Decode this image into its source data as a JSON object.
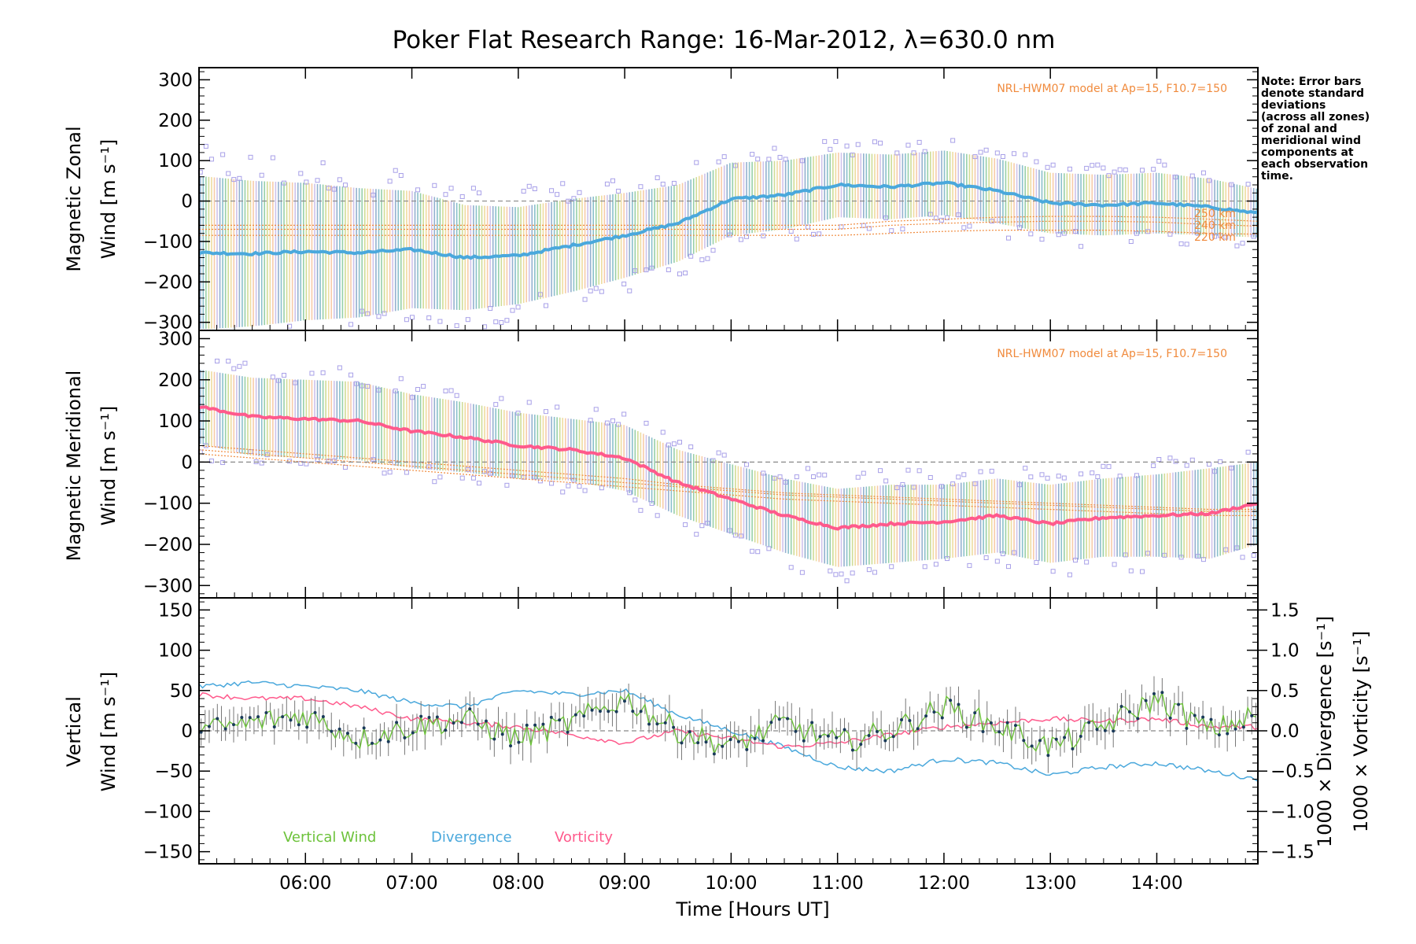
{
  "chart_data": {
    "title": "Poker Flat Research Range: 16-Mar-2012, λ=630.0 nm",
    "xlabel": "Time [Hours UT]",
    "x_ticks": [
      "06:00",
      "07:00",
      "08:00",
      "09:00",
      "10:00",
      "11:00",
      "12:00",
      "13:00",
      "14:00"
    ],
    "x_ticks_hours": [
      6,
      7,
      8,
      9,
      10,
      11,
      12,
      13,
      14
    ],
    "xlim_hours": [
      5.0,
      14.95
    ],
    "note": [
      "Note: Error bars",
      "denote standard",
      "deviations",
      "(across all zones)",
      "of zonal and",
      "meridional wind",
      "components at",
      "each observation",
      "time."
    ],
    "model_label": "NRL-HWM07 model at Ap=15, F10.7=150",
    "model_alt_labels": [
      "250 km",
      "240 km",
      "220 km"
    ],
    "colors": {
      "zonal_mean": "#4aa8dc",
      "meridional_mean": "#ff5a8c",
      "vertical": "#6cc23a",
      "divergence": "#4aa8dc",
      "vorticity": "#ff5a8c",
      "model": "#f08a3c",
      "scatter": "#a8a0e8",
      "errorbar": "#2a4e7a"
    },
    "panels": [
      {
        "id": "zonal",
        "type": "line",
        "ylabel": [
          "Magnetic Zonal",
          "Wind [m s⁻¹]"
        ],
        "ylim": [
          -320,
          330
        ],
        "y_ticks": [
          300,
          200,
          100,
          0,
          -100,
          -200,
          -300
        ],
        "model_label": "NRL-HWM07 model at Ap=15, F10.7=150",
        "series": {
          "x": [
            5.0,
            5.5,
            6.0,
            6.5,
            7.0,
            7.5,
            8.0,
            8.5,
            9.0,
            9.5,
            10.0,
            10.5,
            11.0,
            11.5,
            12.0,
            12.5,
            13.0,
            13.5,
            14.0,
            14.5,
            14.95
          ],
          "mean": [
            -128,
            -130,
            -125,
            -128,
            -120,
            -140,
            -135,
            -110,
            -85,
            -55,
            5,
            15,
            40,
            35,
            45,
            25,
            -5,
            -10,
            -5,
            -15,
            -30
          ],
          "spread": [
            190,
            180,
            170,
            160,
            145,
            130,
            120,
            115,
            105,
            95,
            90,
            85,
            80,
            80,
            80,
            80,
            75,
            75,
            75,
            70,
            60
          ],
          "model_250km": [
            -60,
            -60,
            -60,
            -60,
            -60,
            -60,
            -60,
            -60,
            -60,
            -60,
            -60,
            -60,
            -60,
            -50,
            -45,
            -40,
            -38,
            -38,
            -40,
            -45,
            -50
          ],
          "model_240km": [
            -70,
            -70,
            -70,
            -70,
            -70,
            -70,
            -70,
            -70,
            -70,
            -70,
            -70,
            -70,
            -70,
            -60,
            -55,
            -52,
            -50,
            -50,
            -52,
            -58,
            -62
          ],
          "model_220km": [
            -85,
            -85,
            -85,
            -85,
            -85,
            -85,
            -85,
            -85,
            -85,
            -85,
            -85,
            -85,
            -85,
            -80,
            -75,
            -72,
            -72,
            -72,
            -75,
            -80,
            -82
          ]
        }
      },
      {
        "id": "meridional",
        "type": "line",
        "ylabel": [
          "Magnetic Meridional",
          "Wind [m s⁻¹]"
        ],
        "ylim": [
          -330,
          320
        ],
        "y_ticks": [
          300,
          200,
          100,
          0,
          -100,
          -200,
          -300
        ],
        "model_label": "NRL-HWM07 model at Ap=15, F10.7=150",
        "series": {
          "x": [
            5.0,
            5.5,
            6.0,
            6.5,
            7.0,
            7.5,
            8.0,
            8.5,
            9.0,
            9.5,
            10.0,
            10.5,
            11.0,
            11.5,
            12.0,
            12.5,
            13.0,
            13.5,
            14.0,
            14.5,
            14.95
          ],
          "mean": [
            135,
            110,
            105,
            100,
            75,
            60,
            40,
            30,
            10,
            -50,
            -90,
            -130,
            -160,
            -150,
            -145,
            -130,
            -150,
            -135,
            -130,
            -125,
            -100
          ],
          "spread": [
            90,
            95,
            95,
            95,
            90,
            85,
            80,
            75,
            80,
            80,
            85,
            90,
            95,
            95,
            90,
            90,
            95,
            95,
            100,
            110,
            100
          ],
          "model_250km": [
            40,
            30,
            20,
            10,
            0,
            -10,
            -20,
            -30,
            -40,
            -55,
            -65,
            -75,
            -80,
            -85,
            -90,
            -95,
            -100,
            -105,
            -110,
            -115,
            -115
          ],
          "model_240km": [
            30,
            20,
            10,
            0,
            -10,
            -20,
            -30,
            -40,
            -50,
            -60,
            -70,
            -80,
            -85,
            -90,
            -95,
            -100,
            -105,
            -110,
            -115,
            -120,
            -120
          ],
          "model_220km": [
            20,
            10,
            0,
            -10,
            -20,
            -30,
            -40,
            -50,
            -60,
            -70,
            -80,
            -90,
            -95,
            -100,
            -105,
            -110,
            -115,
            -120,
            -125,
            -130,
            -130
          ]
        }
      },
      {
        "id": "vertical",
        "type": "line",
        "ylabel_left": [
          "Vertical",
          "Wind [m s⁻¹]"
        ],
        "ylabel_right_1": "1000 × Divergence [s⁻¹]",
        "ylabel_right_2": "1000 × Vorticity [s⁻¹]",
        "ylim": [
          -165,
          165
        ],
        "y_ticks": [
          150,
          100,
          50,
          0,
          -50,
          -100,
          -150
        ],
        "ylim_right": [
          -1.65,
          1.65
        ],
        "y_ticks_right": [
          "1.5",
          "1.0",
          "0.5",
          "0.0",
          "−0.5",
          "−1.0",
          "−1.5"
        ],
        "y_ticks_right_values": [
          1.5,
          1.0,
          0.5,
          0.0,
          -0.5,
          -1.0,
          -1.5
        ],
        "legend": [
          "Vertical Wind",
          "Divergence",
          "Vorticity"
        ],
        "series": {
          "x": [
            5.0,
            5.5,
            6.0,
            6.5,
            7.0,
            7.5,
            8.0,
            8.5,
            9.0,
            9.5,
            10.0,
            10.5,
            11.0,
            11.5,
            12.0,
            12.5,
            13.0,
            13.5,
            14.0,
            14.5,
            14.95
          ],
          "vertical_wind": [
            0,
            10,
            20,
            -10,
            5,
            15,
            -10,
            10,
            40,
            0,
            -20,
            10,
            -15,
            0,
            30,
            5,
            -20,
            5,
            40,
            0,
            20
          ],
          "divergence": [
            0.55,
            0.6,
            0.55,
            0.5,
            0.35,
            0.3,
            0.5,
            0.45,
            0.5,
            0.2,
            0.0,
            -0.2,
            -0.45,
            -0.5,
            -0.35,
            -0.4,
            -0.55,
            -0.45,
            -0.4,
            -0.5,
            -0.6
          ],
          "vorticity": [
            0.45,
            0.4,
            0.4,
            0.3,
            0.15,
            0.1,
            0.05,
            -0.05,
            -0.15,
            0.0,
            -0.1,
            -0.2,
            -0.15,
            -0.05,
            0.05,
            0.1,
            0.15,
            0.12,
            0.15,
            0.05,
            0.05
          ]
        }
      }
    ]
  }
}
